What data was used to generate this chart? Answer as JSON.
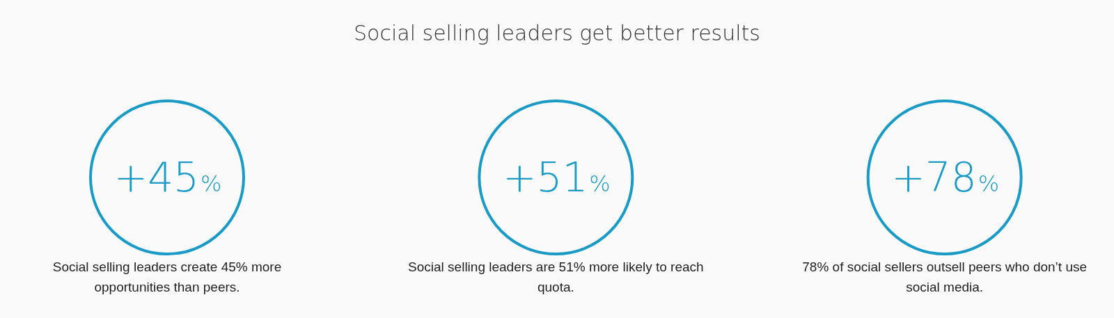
{
  "chart_data": {
    "type": "other",
    "title": "Social selling leaders get better results",
    "categories": [
      "Social selling leaders create 45% more opportunities than peers.",
      "Social selling leaders are 51% more likely to reach quota.",
      "78% of social sellers outsell peers who don’t use social media."
    ],
    "values": [
      45,
      51,
      78
    ],
    "value_labels": [
      "+45%",
      "+51%",
      "+78%"
    ],
    "color": "#1a9bc7"
  }
}
